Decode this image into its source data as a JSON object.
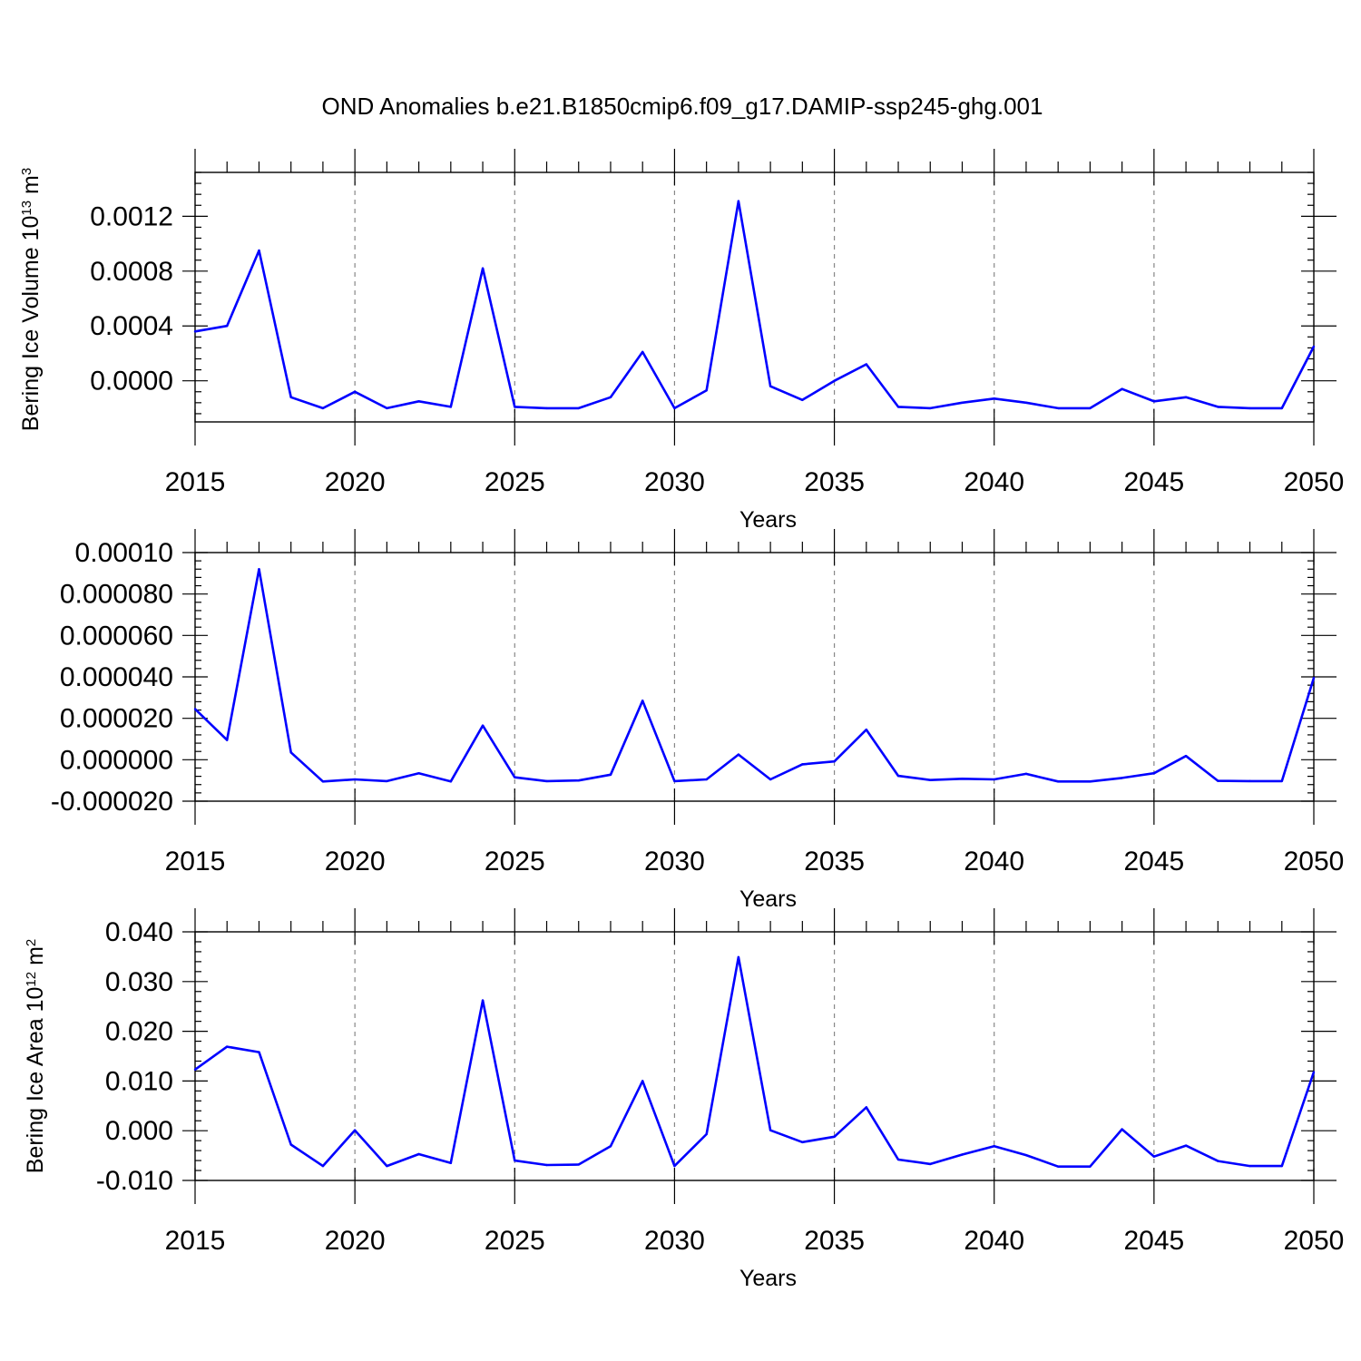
{
  "figure_title": "OND Anomalies b.e21.B1850cmip6.f09_g17.DAMIP-ssp245-ghg.001",
  "colors": {
    "series": "#0000ff",
    "axes": "#000000",
    "grid": "#888888"
  },
  "chart_data": [
    {
      "type": "line",
      "ylabel_main": "Bering Ice Volume 10",
      "ylabel_sup": "13",
      "ylabel_unit": "m",
      "ylabel_unit_sup": "3",
      "xlabel": "Years",
      "xlim": [
        2015,
        2050
      ],
      "ylim": [
        -0.0003,
        0.00152
      ],
      "yticks": [
        0.0,
        0.0004,
        0.0008,
        0.0012
      ],
      "yticklabels": [
        "0.0000",
        "0.0004",
        "0.0008",
        "0.0012"
      ],
      "xticks": [
        2015,
        2020,
        2025,
        2030,
        2035,
        2040,
        2045,
        2050
      ],
      "xticklabels": [
        "2015",
        "2020",
        "2025",
        "2030",
        "2035",
        "2040",
        "2045",
        "2050"
      ],
      "x": [
        2015,
        2016,
        2017,
        2018,
        2019,
        2020,
        2021,
        2022,
        2023,
        2024,
        2025,
        2026,
        2027,
        2028,
        2029,
        2030,
        2031,
        2032,
        2033,
        2034,
        2035,
        2036,
        2037,
        2038,
        2039,
        2040,
        2041,
        2042,
        2043,
        2044,
        2045,
        2046,
        2047,
        2048,
        2049,
        2050
      ],
      "values": [
        0.00036,
        0.0004,
        0.00095,
        -0.00012,
        -0.0002,
        -8e-05,
        -0.0002,
        -0.00015,
        -0.00019,
        0.00082,
        -0.00019,
        -0.0002,
        -0.0002,
        -0.00012,
        0.00021,
        -0.0002,
        -7e-05,
        0.00131,
        -4e-05,
        -0.00014,
        0.0,
        0.00012,
        -0.00019,
        -0.0002,
        -0.00016,
        -0.00013,
        -0.00016,
        -0.0002,
        -0.0002,
        -6e-05,
        -0.00015,
        -0.00012,
        -0.00019,
        -0.0002,
        -0.0002,
        0.00025
      ]
    },
    {
      "type": "line",
      "ylabel_main": "",
      "ylabel_sup": "",
      "ylabel_unit": "",
      "ylabel_unit_sup": "",
      "xlabel": "Years",
      "xlim": [
        2015,
        2050
      ],
      "ylim": [
        -2e-05,
        0.0001
      ],
      "yticks": [
        -2e-05,
        0.0,
        2e-05,
        4e-05,
        6e-05,
        8e-05,
        0.0001
      ],
      "yticklabels": [
        "-0.000020",
        "0.000000",
        "0.000020",
        "0.000040",
        "0.000060",
        "0.000080",
        "0.00010"
      ],
      "xticks": [
        2015,
        2020,
        2025,
        2030,
        2035,
        2040,
        2045,
        2050
      ],
      "xticklabels": [
        "2015",
        "2020",
        "2025",
        "2030",
        "2035",
        "2040",
        "2045",
        "2050"
      ],
      "x": [
        2015,
        2016,
        2017,
        2018,
        2019,
        2020,
        2021,
        2022,
        2023,
        2024,
        2025,
        2026,
        2027,
        2028,
        2029,
        2030,
        2031,
        2032,
        2033,
        2034,
        2035,
        2036,
        2037,
        2038,
        2039,
        2040,
        2041,
        2042,
        2043,
        2044,
        2045,
        2046,
        2047,
        2048,
        2049,
        2050
      ],
      "values": [
        2.45e-05,
        9.5e-06,
        9.2e-05,
        3.5e-06,
        -1.05e-05,
        -9.5e-06,
        -1.03e-05,
        -6.5e-06,
        -1.05e-05,
        1.65e-05,
        -8.5e-06,
        -1.03e-05,
        -1e-05,
        -7.2e-06,
        2.85e-05,
        -1.03e-05,
        -9.5e-06,
        2.5e-06,
        -9.5e-06,
        -2.2e-06,
        -8e-07,
        1.45e-05,
        -7.8e-06,
        -9.8e-06,
        -9.2e-06,
        -9.5e-06,
        -6.8e-06,
        -1.05e-05,
        -1.05e-05,
        -8.8e-06,
        -6.5e-06,
        1.8e-06,
        -1.02e-05,
        -1.03e-05,
        -1.03e-05,
        3.95e-05
      ]
    },
    {
      "type": "line",
      "ylabel_main": "Bering Ice Area 10",
      "ylabel_sup": "12",
      "ylabel_unit": "m",
      "ylabel_unit_sup": "2",
      "xlabel": "Years",
      "xlim": [
        2015,
        2050
      ],
      "ylim": [
        -0.01,
        0.04
      ],
      "yticks": [
        -0.01,
        0.0,
        0.01,
        0.02,
        0.03,
        0.04
      ],
      "yticklabels": [
        "-0.010",
        "0.000",
        "0.010",
        "0.020",
        "0.030",
        "0.040"
      ],
      "xticks": [
        2015,
        2020,
        2025,
        2030,
        2035,
        2040,
        2045,
        2050
      ],
      "xticklabels": [
        "2015",
        "2020",
        "2025",
        "2030",
        "2035",
        "2040",
        "2045",
        "2050"
      ],
      "x": [
        2015,
        2016,
        2017,
        2018,
        2019,
        2020,
        2021,
        2022,
        2023,
        2024,
        2025,
        2026,
        2027,
        2028,
        2029,
        2030,
        2031,
        2032,
        2033,
        2034,
        2035,
        2036,
        2037,
        2038,
        2039,
        2040,
        2041,
        2042,
        2043,
        2044,
        2045,
        2046,
        2047,
        2048,
        2049,
        2050
      ],
      "values": [
        0.0123,
        0.0169,
        0.0158,
        -0.0028,
        -0.0071,
        0.0001,
        -0.0071,
        -0.0047,
        -0.0065,
        0.0262,
        -0.006,
        -0.0069,
        -0.0068,
        -0.0031,
        0.01,
        -0.0071,
        -0.0007,
        0.0349,
        0.0001,
        -0.0023,
        -0.0012,
        0.0047,
        -0.0058,
        -0.0067,
        -0.0048,
        -0.0031,
        -0.0049,
        -0.0072,
        -0.0072,
        0.0003,
        -0.0052,
        -0.003,
        -0.0061,
        -0.0071,
        -0.0071,
        0.0118
      ]
    }
  ]
}
